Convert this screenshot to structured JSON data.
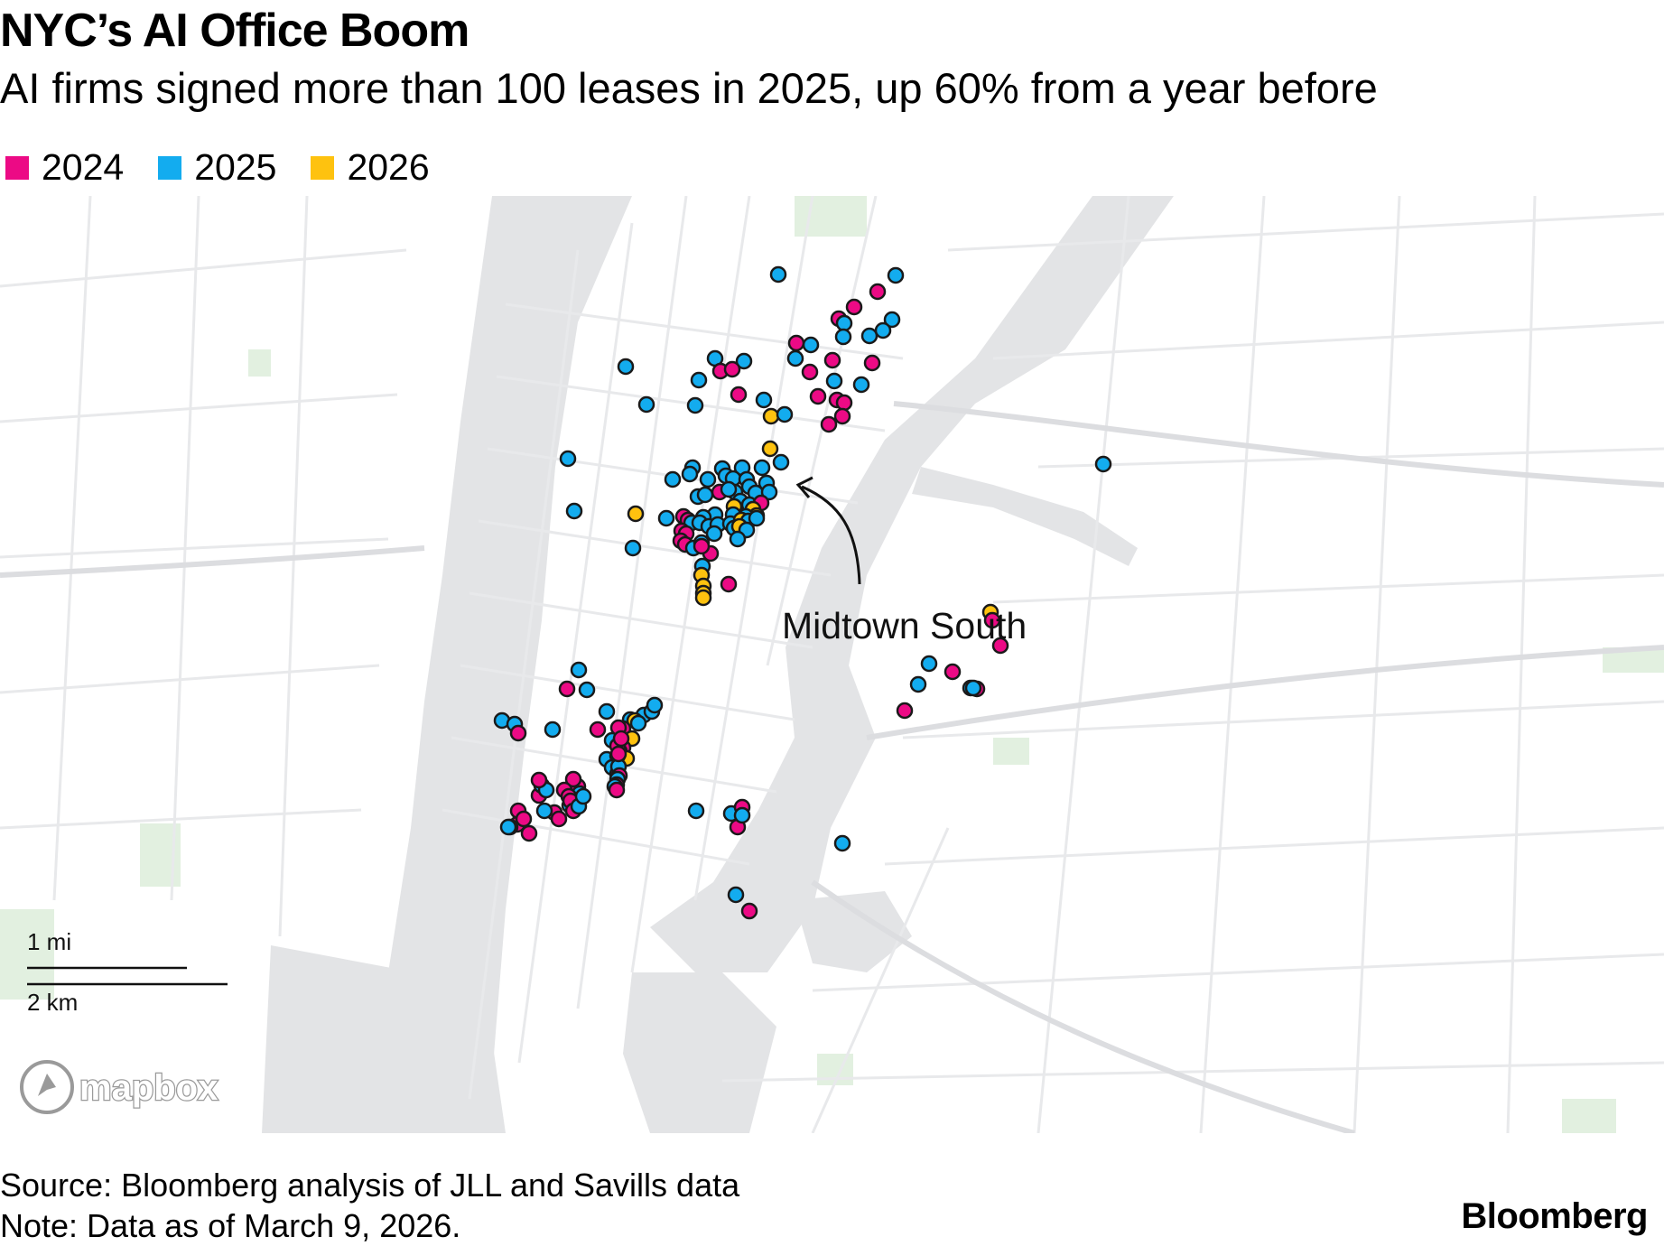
{
  "title": "NYC’s AI Office Boom",
  "subtitle": "AI firms signed more than 100 leases in 2025, up 60% from a year before",
  "legend": [
    {
      "label": "2024",
      "color": "#ec0a85"
    },
    {
      "label": "2025",
      "color": "#13acef"
    },
    {
      "label": "2026",
      "color": "#fec20f"
    }
  ],
  "map": {
    "annotation": "Midtown South",
    "scale_mi": "1 mi",
    "scale_km": "2 km",
    "attribution": "mapbox",
    "colors": {
      "water": "#e3e4e6",
      "land": "#ffffff",
      "roads": "#e8e9eb",
      "park": "#e2f0e0",
      "marker_outline": "#1a1a1a"
    }
  },
  "footer": {
    "source": "Source: Bloomberg analysis of JLL and Savills data",
    "note": "Note: Data as of March 9, 2026."
  },
  "brand": "Bloomberg"
}
